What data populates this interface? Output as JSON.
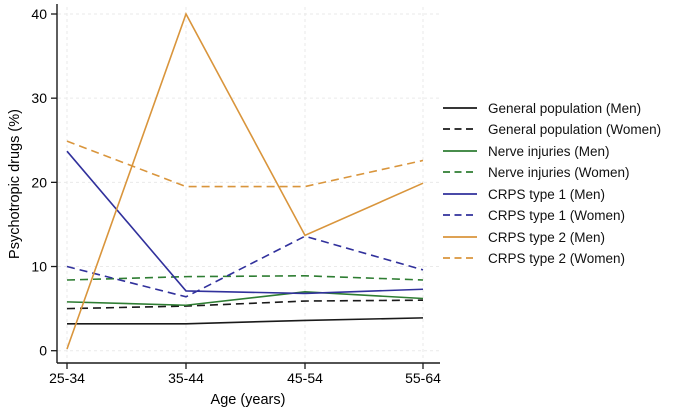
{
  "chart_data": {
    "type": "line",
    "title": "",
    "xlabel": "Age (years)",
    "ylabel": "Psychotropic drugs (%)",
    "categories": [
      "25-34",
      "35-44",
      "45-54",
      "55-64"
    ],
    "yticks": [
      0,
      10,
      20,
      30,
      40
    ],
    "ylim": [
      0,
      40
    ],
    "grid": true,
    "legend_position": "right",
    "series": [
      {
        "name": "General population (Men)",
        "color": "#1a1a1a",
        "dash": false,
        "values": [
          3.2,
          3.2,
          3.6,
          3.9
        ]
      },
      {
        "name": "General population (Women)",
        "color": "#1a1a1a",
        "dash": true,
        "values": [
          5.0,
          5.3,
          5.9,
          6.0
        ]
      },
      {
        "name": "Nerve injuries (Men)",
        "color": "#2e7d32",
        "dash": false,
        "values": [
          5.8,
          5.4,
          7.0,
          6.2
        ]
      },
      {
        "name": "Nerve injuries (Women)",
        "color": "#2e7d32",
        "dash": true,
        "values": [
          8.4,
          8.8,
          8.9,
          8.4
        ]
      },
      {
        "name": "CRPS type 1 (Men)",
        "color": "#31319c",
        "dash": false,
        "values": [
          23.7,
          7.1,
          6.8,
          7.3
        ]
      },
      {
        "name": "CRPS type 1 (Women)",
        "color": "#31319c",
        "dash": true,
        "values": [
          10.0,
          6.4,
          13.6,
          9.6
        ]
      },
      {
        "name": "CRPS type 2 (Men)",
        "color": "#d9953c",
        "dash": false,
        "values": [
          0.2,
          40.0,
          13.7,
          19.9
        ]
      },
      {
        "name": "CRPS type 2 (Women)",
        "color": "#d9953c",
        "dash": true,
        "values": [
          24.9,
          19.5,
          19.5,
          22.6
        ]
      }
    ],
    "colors": {
      "axis": "#1a1a1a",
      "gridline": "#eaeaea",
      "general_population": "#1a1a1a",
      "nerve_injuries": "#2e7d32",
      "crps_type_1": "#31319c",
      "crps_type_2": "#d9953c"
    }
  }
}
